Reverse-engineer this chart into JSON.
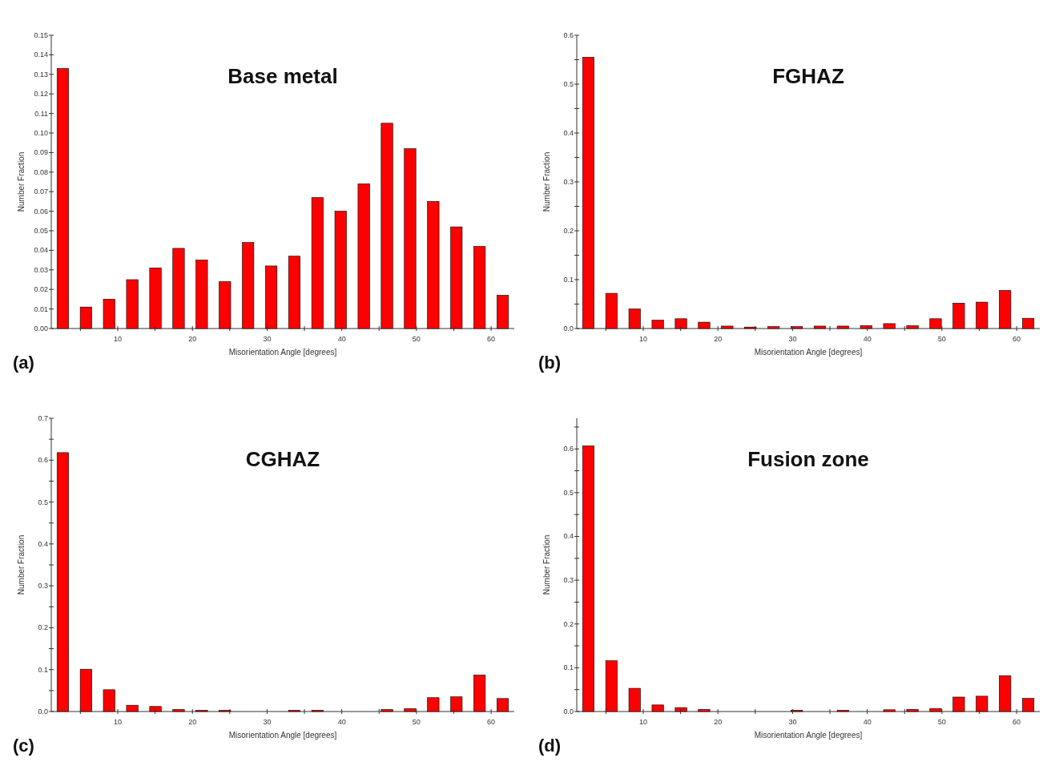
{
  "chart_data": [
    {
      "type": "histogram",
      "title": "Base metal",
      "xlabel": "Misorientation Angle [degrees]",
      "ylabel": "Number Fraction",
      "annotations": [
        "(a)"
      ],
      "color": "#ff0000",
      "bins": [
        1.1,
        4.2,
        7.3,
        10.4,
        13.5,
        16.6,
        19.7,
        22.8,
        25.9,
        29.0,
        32.1,
        35.2,
        38.3,
        41.4,
        44.5,
        47.6,
        50.7,
        53.8,
        56.9,
        60.0,
        63.1
      ],
      "values": [
        0.133,
        0.011,
        0.015,
        0.025,
        0.031,
        0.041,
        0.035,
        0.024,
        0.044,
        0.032,
        0.037,
        0.067,
        0.06,
        0.074,
        0.105,
        0.092,
        0.065,
        0.052,
        0.042,
        0.017
      ],
      "xlim": [
        1.1,
        63.1
      ],
      "xticks": [
        {
          "value": 5,
          "label": null
        },
        10,
        {
          "value": 15,
          "label": null
        },
        20,
        {
          "value": 25,
          "label": null
        },
        30,
        {
          "value": 35,
          "label": null
        },
        40,
        {
          "value": 45,
          "label": null
        },
        50,
        {
          "value": 55,
          "label": null
        },
        60
      ],
      "ylim": [
        0,
        0.15
      ],
      "yticks": [
        {
          "value": 0,
          "label": "0.00"
        },
        {
          "value": 0.01,
          "label": "0.01"
        },
        {
          "value": 0.02,
          "label": "0.02"
        },
        {
          "value": 0.03,
          "label": "0.03"
        },
        {
          "value": 0.04,
          "label": "0.04"
        },
        {
          "value": 0.05,
          "label": "0.05"
        },
        {
          "value": 0.06,
          "label": "0.06"
        },
        {
          "value": 0.07,
          "label": "0.07"
        },
        {
          "value": 0.08,
          "label": "0.08"
        },
        {
          "value": 0.09,
          "label": "0.09"
        },
        {
          "value": 0.1,
          "label": "0.10"
        },
        {
          "value": 0.11,
          "label": "0.11"
        },
        {
          "value": 0.12,
          "label": "0.12"
        },
        {
          "value": 0.13,
          "label": "0.13"
        },
        {
          "value": 0.14,
          "label": "0.14"
        },
        {
          "value": 0.15,
          "label": "0.15"
        }
      ]
    },
    {
      "type": "histogram",
      "title": "FGHAZ",
      "xlabel": "Misorientation Angle [degrees]",
      "ylabel": "Number Fraction",
      "annotations": [
        "(b)"
      ],
      "color": "#ff0000",
      "bins": [
        1.1,
        4.2,
        7.3,
        10.4,
        13.5,
        16.6,
        19.7,
        22.8,
        25.9,
        29.0,
        32.1,
        35.2,
        38.3,
        41.4,
        44.5,
        47.6,
        50.7,
        53.8,
        56.9,
        60.0,
        63.1
      ],
      "values": [
        0.555,
        0.072,
        0.04,
        0.017,
        0.02,
        0.013,
        0.005,
        0.003,
        0.004,
        0.004,
        0.005,
        0.005,
        0.006,
        0.01,
        0.006,
        0.02,
        0.052,
        0.054,
        0.078,
        0.021
      ],
      "xlim": [
        1.1,
        63.1
      ],
      "xticks": [
        {
          "value": 5,
          "label": null
        },
        10,
        {
          "value": 15,
          "label": null
        },
        20,
        {
          "value": 25,
          "label": null
        },
        30,
        {
          "value": 35,
          "label": null
        },
        40,
        {
          "value": 45,
          "label": null
        },
        50,
        {
          "value": 55,
          "label": null
        },
        60
      ],
      "ylim": [
        0,
        0.6
      ],
      "yticks": [
        {
          "value": 0,
          "label": "0.0"
        },
        {
          "value": 0.05,
          "label": null
        },
        0.1,
        {
          "value": 0.15,
          "label": null
        },
        0.2,
        {
          "value": 0.25,
          "label": null
        },
        0.3,
        {
          "value": 0.35,
          "label": null
        },
        0.4,
        {
          "value": 0.45,
          "label": null
        },
        0.5,
        {
          "value": 0.55,
          "label": null
        },
        0.6
      ]
    },
    {
      "type": "histogram",
      "title": "CGHAZ",
      "xlabel": "Misorientation Angle [degrees]",
      "ylabel": "Number Fraction",
      "annotations": [
        "(c)"
      ],
      "color": "#ff0000",
      "bins": [
        1.1,
        4.2,
        7.3,
        10.4,
        13.5,
        16.6,
        19.7,
        22.8,
        25.9,
        29.0,
        32.1,
        35.2,
        38.3,
        41.4,
        44.5,
        47.6,
        50.7,
        53.8,
        56.9,
        60.0,
        63.1
      ],
      "values": [
        0.618,
        0.101,
        0.052,
        0.015,
        0.012,
        0.005,
        0.003,
        0.003,
        0,
        0,
        0.003,
        0.003,
        0,
        0,
        0.005,
        0.007,
        0.033,
        0.035,
        0.087,
        0.031
      ],
      "xlim": [
        1.1,
        63.1
      ],
      "xticks": [
        {
          "value": 5,
          "label": null
        },
        10,
        {
          "value": 15,
          "label": null
        },
        20,
        {
          "value": 25,
          "label": null
        },
        30,
        {
          "value": 35,
          "label": null
        },
        40,
        {
          "value": 45,
          "label": null
        },
        50,
        {
          "value": 55,
          "label": null
        },
        60
      ],
      "ylim": [
        0,
        0.7
      ],
      "yticks": [
        {
          "value": 0,
          "label": "0.0"
        },
        {
          "value": 0.05,
          "label": null
        },
        0.1,
        {
          "value": 0.15,
          "label": null
        },
        0.2,
        {
          "value": 0.25,
          "label": null
        },
        0.3,
        {
          "value": 0.35,
          "label": null
        },
        0.4,
        {
          "value": 0.45,
          "label": null
        },
        0.5,
        {
          "value": 0.55,
          "label": null
        },
        0.6,
        {
          "value": 0.65,
          "label": null
        },
        0.7
      ]
    },
    {
      "type": "histogram",
      "title": "Fusion zone",
      "xlabel": "Misorientation Angle [degrees]",
      "ylabel": "Number Fraction",
      "annotations": [
        "(d)"
      ],
      "color": "#ff0000",
      "bins": [
        1.1,
        4.2,
        7.3,
        10.4,
        13.5,
        16.6,
        19.7,
        22.8,
        25.9,
        29.0,
        32.1,
        35.2,
        38.3,
        41.4,
        44.5,
        47.6,
        50.7,
        53.8,
        56.9,
        60.0,
        63.1
      ],
      "values": [
        0.607,
        0.116,
        0.053,
        0.015,
        0.009,
        0.005,
        0,
        0,
        0,
        0.003,
        0,
        0.003,
        0,
        0.004,
        0.005,
        0.007,
        0.033,
        0.035,
        0.082,
        0.03
      ],
      "xlim": [
        1.1,
        63.1
      ],
      "xticks": [
        {
          "value": 5,
          "label": null
        },
        10,
        {
          "value": 15,
          "label": null
        },
        20,
        {
          "value": 25,
          "label": null
        },
        30,
        {
          "value": 35,
          "label": null
        },
        40,
        {
          "value": 45,
          "label": null
        },
        50,
        {
          "value": 55,
          "label": null
        },
        60
      ],
      "ylim": [
        0,
        0.67
      ],
      "yticks": [
        {
          "value": 0,
          "label": "0.0"
        },
        {
          "value": 0.05,
          "label": null
        },
        0.1,
        {
          "value": 0.15,
          "label": null
        },
        0.2,
        {
          "value": 0.25,
          "label": null
        },
        0.3,
        {
          "value": 0.35,
          "label": null
        },
        0.4,
        {
          "value": 0.45,
          "label": null
        },
        0.5,
        {
          "value": 0.55,
          "label": null
        },
        0.6,
        {
          "value": 0.65,
          "label": null
        }
      ]
    }
  ]
}
